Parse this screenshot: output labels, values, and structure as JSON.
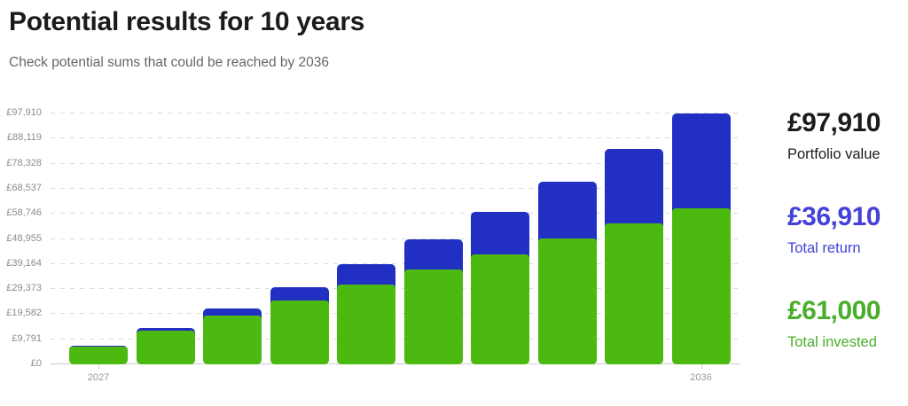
{
  "header": {
    "title": "Potential results for 10 years",
    "subtitle": "Check potential sums that could be reached by 2036"
  },
  "summary": {
    "portfolio": {
      "value": "£97,910",
      "label": "Portfolio value",
      "color": "#1b1b1b"
    },
    "return": {
      "value": "£36,910",
      "label": "Total return",
      "color": "#4341d8"
    },
    "invested": {
      "value": "£61,000",
      "label": "Total invested",
      "color": "#4aad2b"
    }
  },
  "chart_data": {
    "type": "bar",
    "stacked": true,
    "x": [
      "2027",
      "2028",
      "2029",
      "2030",
      "2031",
      "2032",
      "2033",
      "2034",
      "2035",
      "2036"
    ],
    "x_labels_visible": [
      "2027",
      "2036"
    ],
    "series": [
      {
        "name": "Total invested",
        "color": "#4bb90f",
        "values": [
          7000,
          13000,
          19000,
          25000,
          31000,
          37000,
          43000,
          49000,
          55000,
          61000
        ]
      },
      {
        "name": "Total return",
        "color": "#2130c3",
        "values": [
          340,
          1260,
          2820,
          5060,
          8070,
          11890,
          16620,
          22330,
          29120,
          36910
        ]
      }
    ],
    "stack_totals": [
      7340,
      14260,
      21820,
      30060,
      39070,
      48890,
      59620,
      71330,
      84120,
      97910
    ],
    "y_ticks": [
      {
        "value": 0,
        "label": "£0"
      },
      {
        "value": 9791,
        "label": "£9,791"
      },
      {
        "value": 19582,
        "label": "£19,582"
      },
      {
        "value": 29373,
        "label": "£29,373"
      },
      {
        "value": 39164,
        "label": "£39,164"
      },
      {
        "value": 48955,
        "label": "£48,955"
      },
      {
        "value": 58746,
        "label": "£58,746"
      },
      {
        "value": 68537,
        "label": "£68,537"
      },
      {
        "value": 78328,
        "label": "£78,328"
      },
      {
        "value": 88119,
        "label": "£88,119"
      },
      {
        "value": 97910,
        "label": "£97,910"
      }
    ],
    "ylim": [
      0,
      97910
    ],
    "grid": "horizontal-dashed",
    "legend": "none"
  }
}
